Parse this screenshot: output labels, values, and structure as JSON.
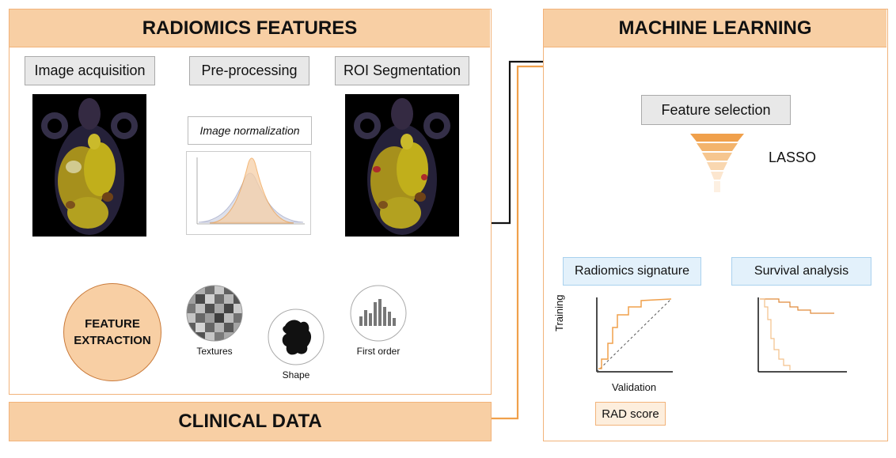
{
  "radiomics": {
    "title": "RADIOMICS FEATURES",
    "steps": [
      "Image acquisition",
      "Pre-processing",
      "ROI Segmentation"
    ],
    "normalization_label": "Image normalization",
    "feature_extraction": "FEATURE\nEXTRACTION",
    "features": [
      "Textures",
      "Shape",
      "First order"
    ]
  },
  "clinical": {
    "title": "CLINICAL DATA"
  },
  "ml": {
    "title": "MACHINE LEARNING",
    "feature_selection": "Feature selection",
    "lasso": "LASSO",
    "radiomics_signature": "Radiomics signature",
    "survival_analysis": "Survival analysis",
    "training_label": "Training",
    "validation_label": "Validation",
    "rad_score": "RAD score"
  },
  "colors": {
    "accent": "#f0a04b",
    "header": "#f8cfa4",
    "panel_border": "#f2b37a",
    "box_blue": "#e3f1fb",
    "box_grey": "#e8e8e8"
  }
}
